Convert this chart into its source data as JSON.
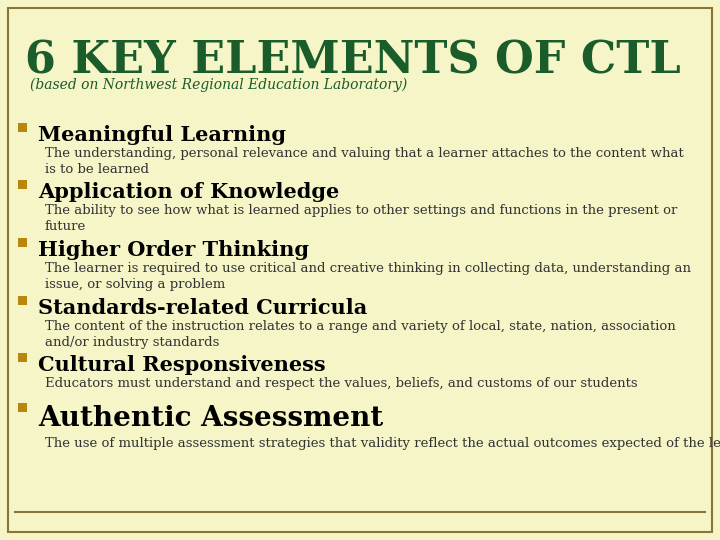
{
  "bg_color": "#F5F5C8",
  "border_color": "#8B7536",
  "title": "6 KEY ELEMENTS OF CTL",
  "title_color": "#1A5C2A",
  "subtitle": "(based on Northwest Regional Education Laboratory)",
  "subtitle_color": "#1A5C2A",
  "bullet_color": "#B8860B",
  "heading_color": "#000000",
  "body_color": "#333333",
  "items": [
    {
      "heading": "Meaningful Learning",
      "body": "The understanding, personal relevance and valuing that a learner attaches to the content what\nis to be learned",
      "heading_size": 15
    },
    {
      "heading": "Application of Knowledge",
      "body": "The ability to see how what is learned applies to other settings and functions in the present or\nfuture",
      "heading_size": 15
    },
    {
      "heading": "Higher Order Thinking",
      "body": "The learner is required to use critical and creative thinking in collecting data, understanding an\nissue, or solving a problem",
      "heading_size": 15
    },
    {
      "heading": "Standards-related Curricula",
      "body": "The content of the instruction relates to a range and variety of local, state, nation, association\nand/or industry standards",
      "heading_size": 15
    },
    {
      "heading": "Cultural Responsiveness",
      "body": "Educators must understand and respect the values, beliefs, and customs of our students",
      "heading_size": 15
    },
    {
      "heading": "Authentic Assessment",
      "body": "The use of multiple assessment strategies that validity reflect the actual outcomes expected of the learner.",
      "heading_size": 20
    }
  ],
  "title_fontsize": 32,
  "subtitle_fontsize": 10,
  "body_fontsize": 9.5
}
